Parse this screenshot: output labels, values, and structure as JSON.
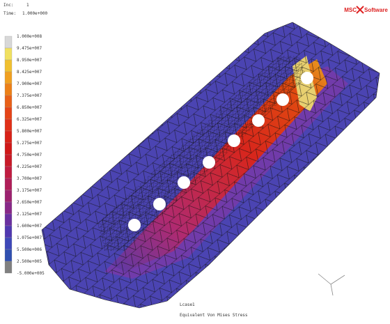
{
  "header": {
    "inc_label": "Inc:",
    "inc": "1",
    "time_label": "Time:",
    "time": "1.000e+000"
  },
  "logo": {
    "left": "MSC",
    "right": "Software"
  },
  "legend": {
    "labels": [
      "1.000e+008",
      "9.475e+007",
      "8.950e+007",
      "8.425e+007",
      "7.900e+007",
      "7.375e+007",
      "6.850e+007",
      "6.325e+007",
      "5.800e+007",
      "5.275e+007",
      "4.750e+007",
      "4.225e+007",
      "3.700e+007",
      "3.175e+007",
      "2.650e+007",
      "2.125e+007",
      "1.600e+007",
      "1.075e+007",
      "5.500e+006",
      "2.500e+005",
      "-5.000e+005"
    ]
  },
  "footer": {
    "load_case": "Lcase1",
    "result": "Equivalent Von Mises Stress"
  }
}
